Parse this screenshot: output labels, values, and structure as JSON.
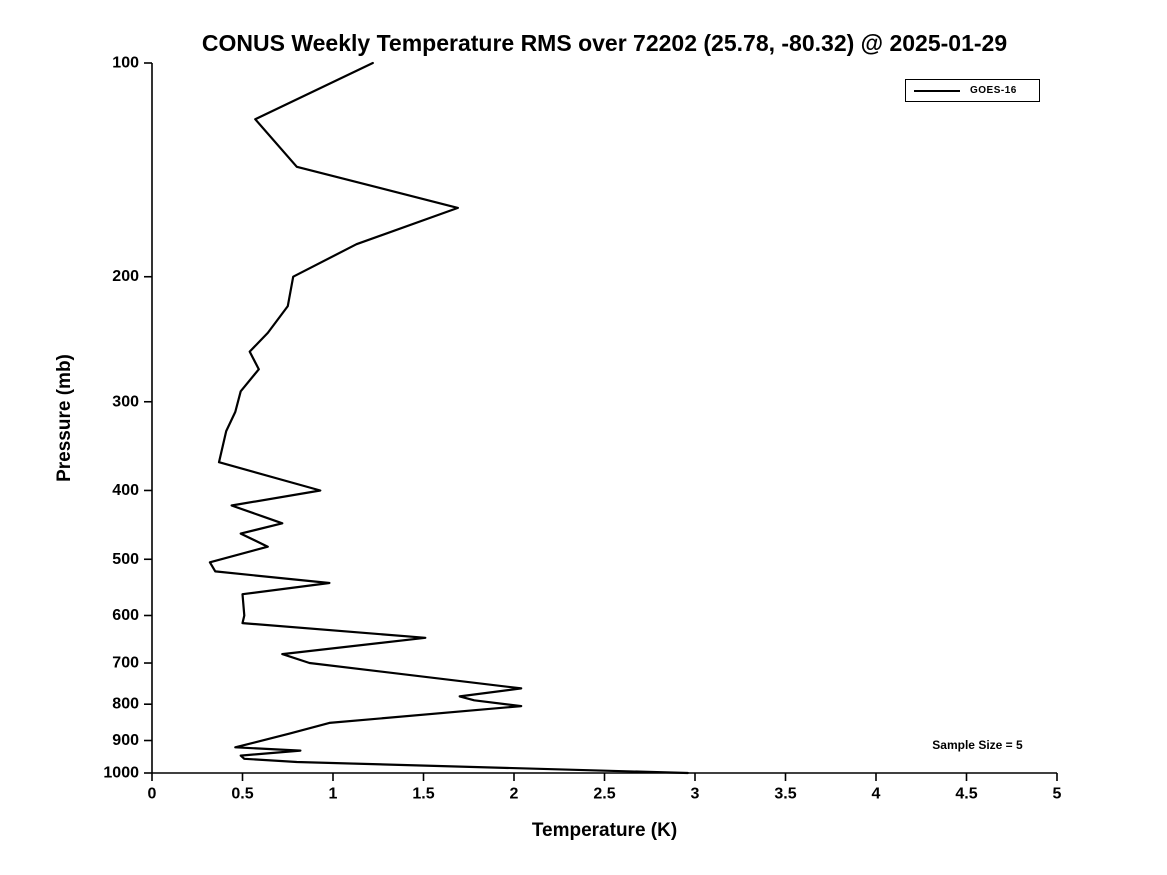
{
  "title": "CONUS Weekly Temperature RMS over 72202 (25.78, -80.32) @ 2025-01-29",
  "annotation": "Sample Size = 5",
  "legend": {
    "position": "top-right",
    "entries": [
      {
        "label": "GOES-16",
        "color": "#000000"
      }
    ]
  },
  "chart_data": {
    "type": "line",
    "title": "CONUS Weekly Temperature RMS over 72202 (25.78, -80.32) @ 2025-01-29",
    "xlabel": "Temperature (K)",
    "ylabel": "Pressure (mb)",
    "xlim": [
      0,
      5
    ],
    "ylim": [
      100,
      1000
    ],
    "y_scale": "log",
    "y_inverted": true,
    "grid": false,
    "line_color": "#000000",
    "background_color": "#ffffff",
    "xticks": [
      0,
      0.5,
      1,
      1.5,
      2,
      2.5,
      3,
      3.5,
      4,
      4.5,
      5
    ],
    "yticks": [
      100,
      200,
      300,
      400,
      500,
      600,
      700,
      800,
      900,
      1000
    ],
    "series": [
      {
        "name": "GOES-16",
        "color": "#000000",
        "pressure_mb": [
          100,
          120,
          140,
          160,
          180,
          200,
          220,
          240,
          255,
          270,
          290,
          310,
          330,
          365,
          400,
          420,
          435,
          445,
          460,
          480,
          505,
          520,
          540,
          560,
          600,
          615,
          645,
          680,
          700,
          760,
          780,
          790,
          805,
          850,
          880,
          920,
          930,
          945,
          955,
          965,
          1000
        ],
        "rms_k": [
          1.22,
          0.57,
          0.8,
          1.69,
          1.13,
          0.78,
          0.75,
          0.64,
          0.54,
          0.59,
          0.49,
          0.46,
          0.41,
          0.37,
          0.93,
          0.44,
          0.61,
          0.72,
          0.49,
          0.64,
          0.32,
          0.35,
          0.98,
          0.5,
          0.51,
          0.5,
          1.51,
          0.72,
          0.87,
          2.04,
          1.7,
          1.78,
          2.04,
          0.98,
          0.76,
          0.46,
          0.82,
          0.49,
          0.51,
          0.8,
          2.96
        ]
      }
    ],
    "annotations": [
      "Sample Size = 5"
    ]
  }
}
